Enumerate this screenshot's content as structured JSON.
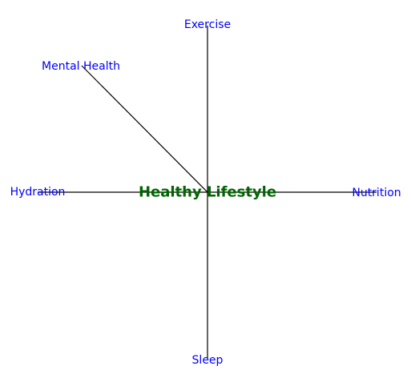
{
  "center": {
    "label": "Healthy Lifestyle",
    "color": "#006400"
  },
  "branch_color": "#0000ff",
  "branches": [
    {
      "label": "Exercise"
    },
    {
      "label": "Mental Health"
    },
    {
      "label": "Hydration"
    },
    {
      "label": "Nutrition"
    },
    {
      "label": "Sleep"
    }
  ]
}
